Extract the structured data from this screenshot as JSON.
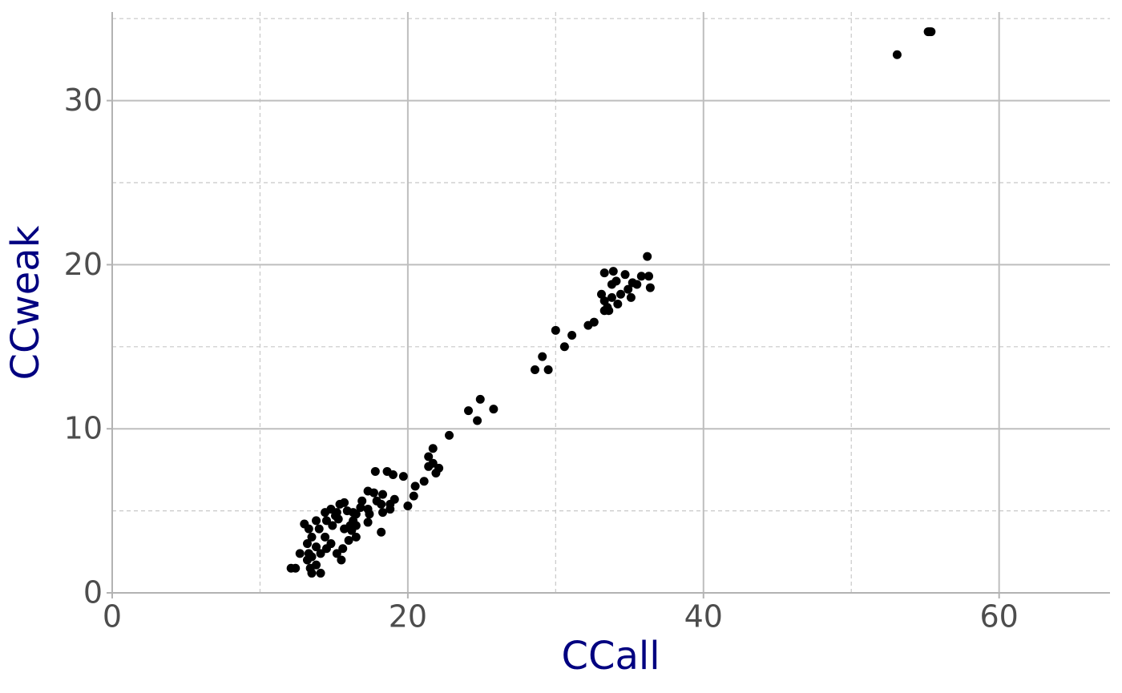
{
  "chart_data": {
    "type": "scatter",
    "x_label": "CCall",
    "y_label": "CCweak",
    "color": "#000000",
    "grid": true,
    "xlim": [
      0,
      67.5
    ],
    "ylim": [
      0,
      35.4
    ],
    "xticks": [
      0,
      20,
      40,
      60
    ],
    "yticks": [
      0,
      10,
      20,
      30
    ],
    "x_minor_grid": [
      10,
      30,
      50
    ],
    "y_minor_grid": [
      5,
      15,
      25,
      35
    ],
    "x": [
      55.3,
      55.2,
      55.4,
      53.1,
      36.2,
      33.3,
      33.9,
      36.3,
      35.8,
      34.7,
      34.1,
      33.8,
      35.2,
      36.4,
      35.5,
      34.9,
      33.1,
      34.4,
      35.1,
      33.8,
      33.3,
      34.2,
      33.5,
      33.3,
      33.6,
      32.6,
      32.2,
      31.1,
      30.0,
      30.6,
      29.1,
      28.6,
      29.5,
      24.9,
      24.1,
      25.8,
      24.7,
      22.8,
      21.7,
      21.4,
      21.7,
      22.1,
      21.4,
      21.9,
      21.1,
      20.5,
      20.4,
      20.0,
      19.7,
      17.8,
      18.6,
      19.0,
      19.1,
      18.8,
      18.3,
      18.8,
      18.3,
      17.3,
      17.7,
      17.9,
      18.2,
      16.9,
      17.3,
      17.4,
      16.8,
      16.5,
      17.3,
      18.2,
      16.3,
      15.7,
      15.4,
      15.2,
      14.8,
      14.4,
      14.5,
      14.9,
      15.3,
      15.7,
      16.2,
      16.5,
      16.0,
      15.6,
      15.2,
      15.5,
      14.8,
      14.4,
      14.0,
      13.8,
      13.3,
      13.0,
      13.5,
      13.2,
      13.8,
      14.1,
      14.5,
      13.5,
      12.7,
      13.3,
      13.2,
      13.4,
      13.5,
      14.1,
      12.1,
      12.4,
      13.8,
      16.3,
      15.9,
      15.1,
      16.5,
      16.1
    ],
    "values": [
      34.2,
      34.2,
      34.2,
      32.8,
      20.5,
      19.5,
      19.6,
      19.3,
      19.3,
      19.4,
      19.0,
      18.8,
      18.9,
      18.6,
      18.8,
      18.5,
      18.2,
      18.2,
      18.0,
      18.0,
      17.8,
      17.6,
      17.4,
      17.2,
      17.2,
      16.5,
      16.3,
      15.7,
      16.0,
      15.0,
      14.4,
      13.6,
      13.6,
      11.8,
      11.1,
      11.2,
      10.5,
      9.6,
      8.8,
      8.3,
      7.9,
      7.6,
      7.7,
      7.3,
      6.8,
      6.5,
      5.9,
      5.3,
      7.1,
      7.4,
      7.4,
      7.2,
      5.7,
      5.4,
      4.9,
      5.1,
      6.0,
      6.2,
      6.1,
      5.6,
      5.4,
      5.6,
      5.1,
      4.8,
      5.2,
      4.8,
      4.3,
      3.7,
      4.4,
      5.5,
      5.4,
      4.9,
      5.1,
      4.9,
      4.4,
      4.1,
      4.5,
      3.9,
      3.8,
      3.4,
      3.2,
      2.7,
      2.4,
      2.0,
      3.0,
      3.4,
      3.9,
      4.4,
      3.9,
      4.2,
      3.4,
      3.0,
      2.8,
      2.4,
      2.7,
      2.2,
      2.4,
      2.4,
      2.0,
      1.5,
      1.2,
      1.2,
      1.5,
      1.5,
      1.7,
      4.9,
      5.0,
      4.7,
      4.1,
      4.1
    ]
  }
}
